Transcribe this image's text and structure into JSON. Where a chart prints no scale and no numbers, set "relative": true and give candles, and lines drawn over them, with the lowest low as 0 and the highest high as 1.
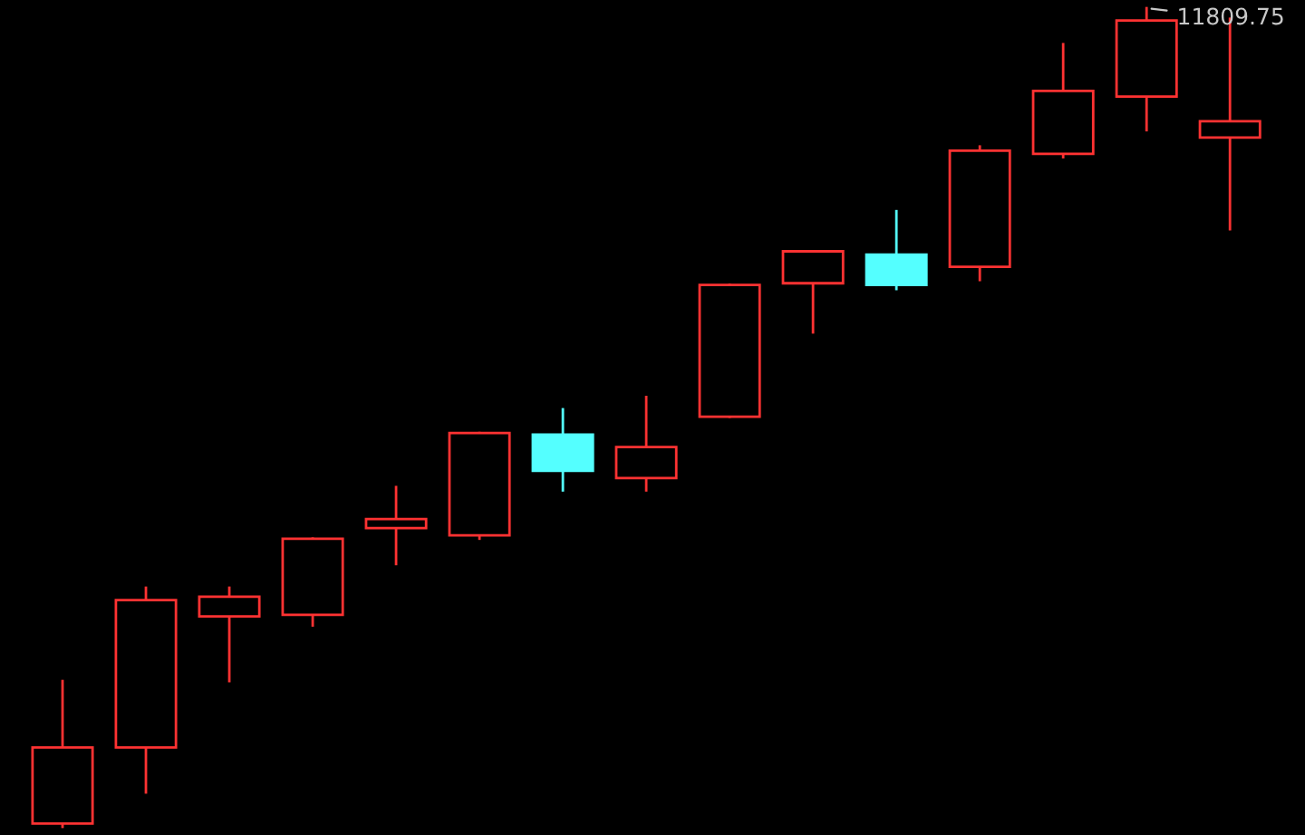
{
  "chart_data": {
    "type": "candlestick",
    "relative": true,
    "categories": [
      null,
      null,
      null,
      null,
      null,
      null,
      null,
      null,
      null,
      null,
      null,
      null,
      null,
      null,
      null
    ],
    "ohlc": [
      [
        0.004,
        0.178,
        0.0,
        0.097
      ],
      [
        0.097,
        0.292,
        0.042,
        0.277
      ],
      [
        0.257,
        0.292,
        0.178,
        0.281
      ],
      [
        0.259,
        0.352,
        0.246,
        0.352
      ],
      [
        0.365,
        0.415,
        0.321,
        0.376
      ],
      [
        0.356,
        0.481,
        0.352,
        0.481
      ],
      [
        0.479,
        0.51,
        0.411,
        0.435
      ],
      [
        0.426,
        0.525,
        0.411,
        0.464
      ],
      [
        0.501,
        0.662,
        0.501,
        0.662
      ],
      [
        0.664,
        0.703,
        0.604,
        0.703
      ],
      [
        0.699,
        0.752,
        0.657,
        0.662
      ],
      [
        0.684,
        0.831,
        0.668,
        0.826
      ],
      [
        0.822,
        0.956,
        0.818,
        0.899
      ],
      [
        0.892,
        1.0,
        0.851,
        0.985
      ],
      [
        0.842,
        0.987,
        0.73,
        0.862
      ]
    ],
    "colors": [
      "#ff3232",
      "#ff3232",
      "#ff3232",
      "#ff3232",
      "#ff3232",
      "#ff3232",
      "#54ffff",
      "#ff3232",
      "#ff3232",
      "#ff3232",
      "#54ffff",
      "#ff3232",
      "#ff3232",
      "#ff3232",
      "#ff3232"
    ],
    "annotations": [
      "11809.75"
    ]
  }
}
